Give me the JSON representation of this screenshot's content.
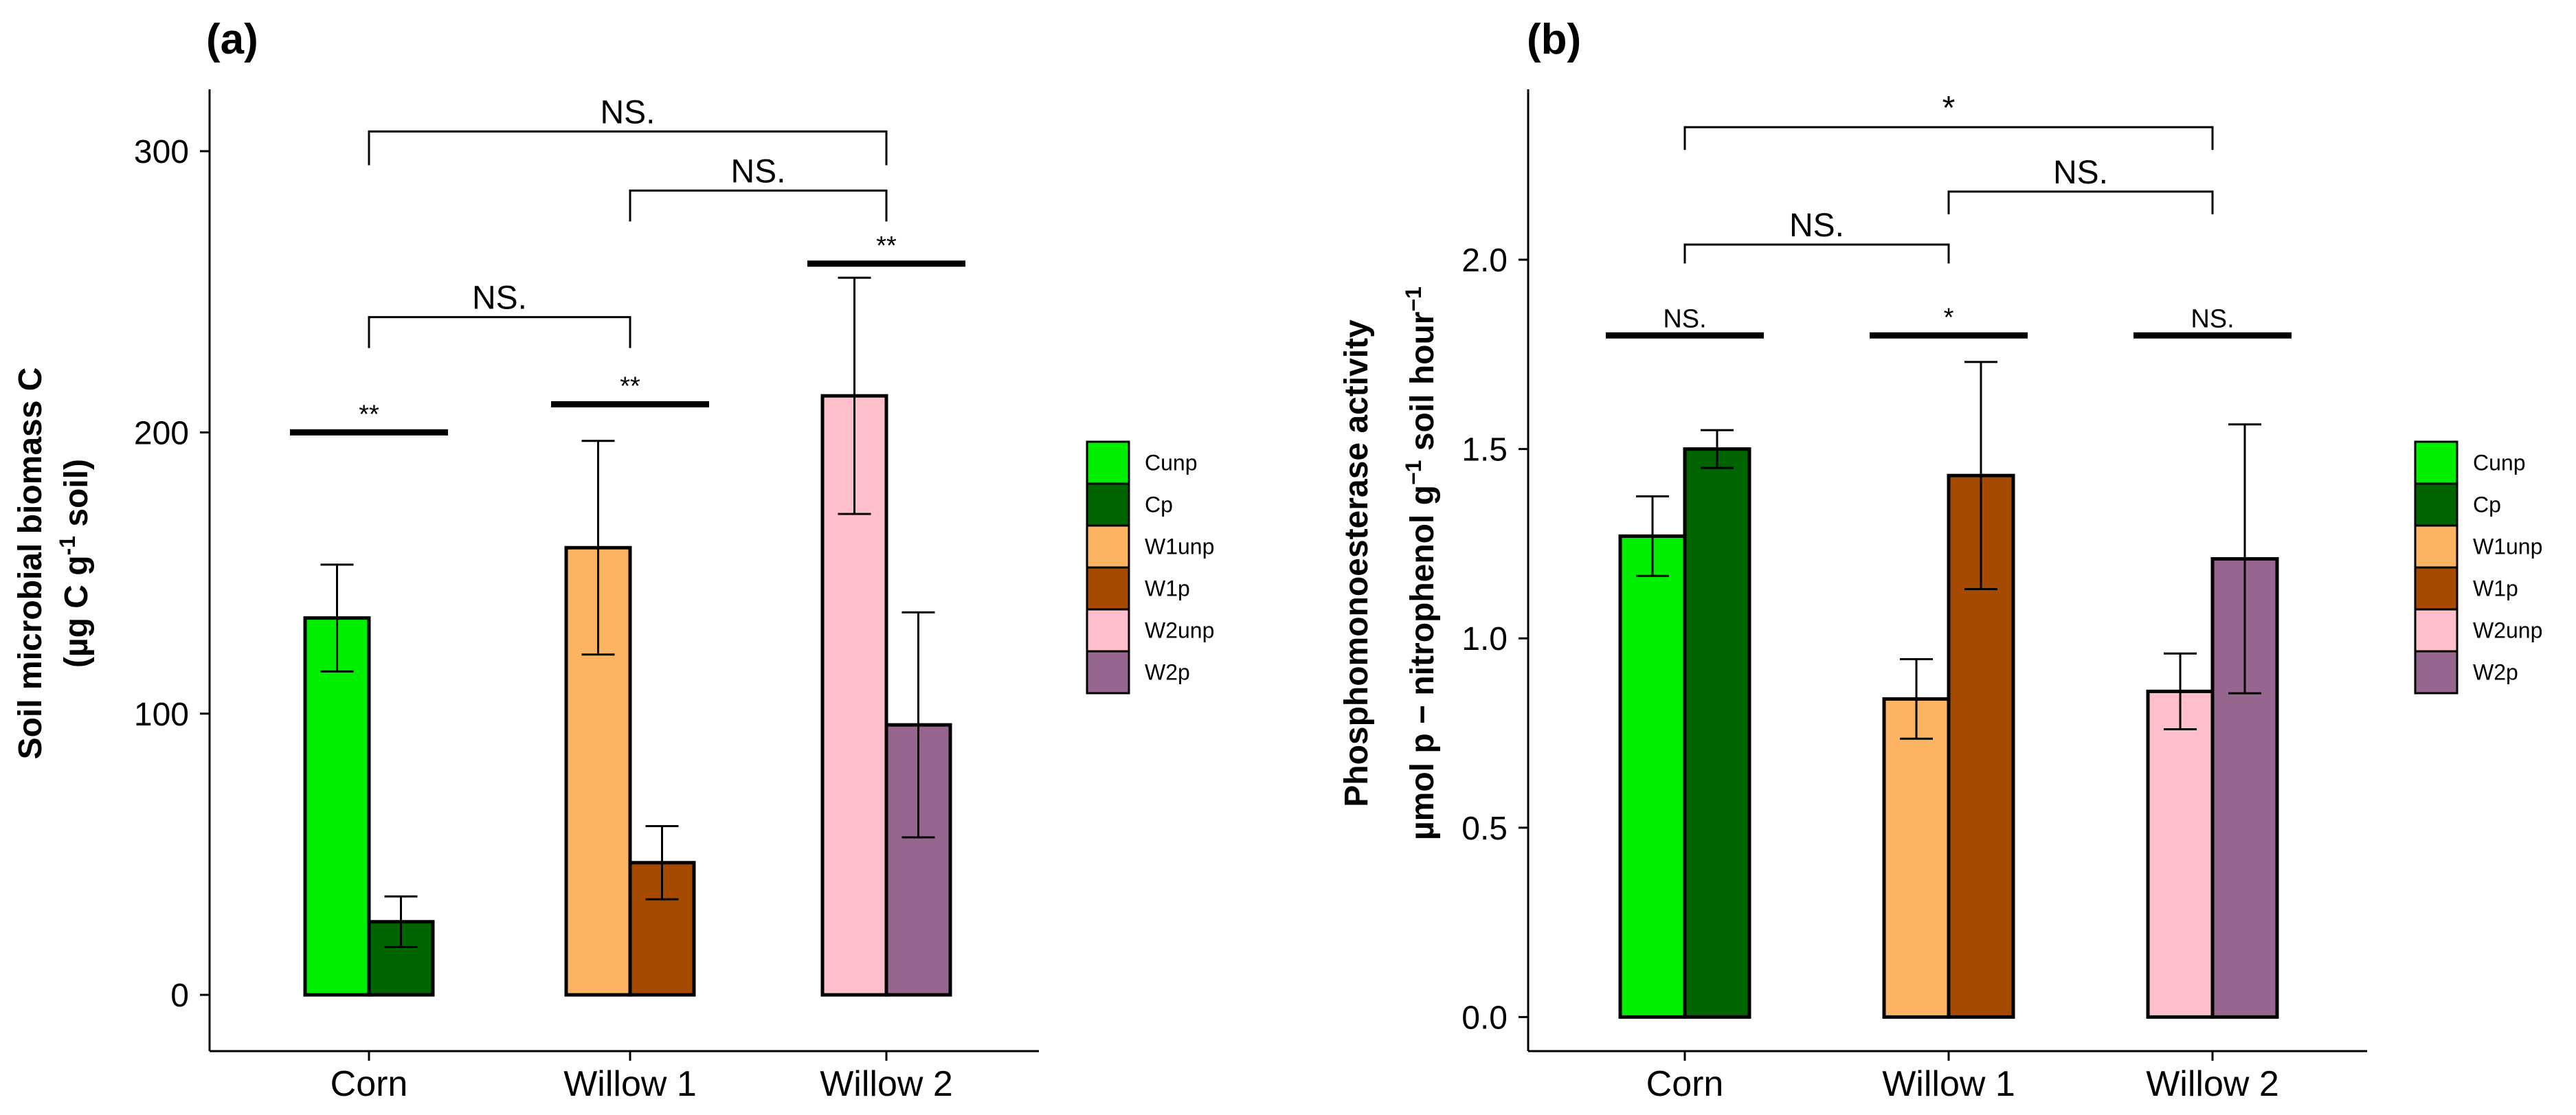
{
  "legend": [
    {
      "key": "Cunp",
      "label": "Cunp",
      "color": "#00EE00"
    },
    {
      "key": "Cp",
      "label": "Cp",
      "color": "#006400"
    },
    {
      "key": "W1unp",
      "label": "W1unp",
      "color": "#FDB462"
    },
    {
      "key": "W1p",
      "label": "W1p",
      "color": "#A64A00"
    },
    {
      "key": "W2unp",
      "label": "W2unp",
      "color": "#FFC0CB"
    },
    {
      "key": "W2p",
      "label": "W2p",
      "color": "#96668E"
    }
  ],
  "chart_data": [
    {
      "type": "bar",
      "panel_label": "(a)",
      "title": "",
      "ylabel_line1": "Soil microbial biomass C",
      "ylabel_line2_prefix": "(µg C  g",
      "ylabel_line2_sup": "-1",
      "ylabel_line2_suffix": " soil)",
      "xlabel": "",
      "ylim": [
        -20,
        322
      ],
      "yticks": [
        0,
        100,
        200,
        300
      ],
      "ytick_labels": [
        "0",
        "100",
        "200",
        "300"
      ],
      "categories": [
        "Corn",
        "Willow 1",
        "Willow 2"
      ],
      "groups": [
        {
          "category": "Corn",
          "bars": [
            {
              "key": "Cunp",
              "value": 134,
              "err": 19
            },
            {
              "key": "Cp",
              "value": 26,
              "err": 9
            }
          ]
        },
        {
          "category": "Willow 1",
          "bars": [
            {
              "key": "W1unp",
              "value": 159,
              "err": 38
            },
            {
              "key": "W1p",
              "value": 47,
              "err": 13
            }
          ]
        },
        {
          "category": "Willow 2",
          "bars": [
            {
              "key": "W2unp",
              "value": 213,
              "err": 42
            },
            {
              "key": "W2p",
              "value": 96,
              "err": 40
            }
          ]
        }
      ],
      "within_group_significance": [
        {
          "category": "Corn",
          "label": "**",
          "y": 200
        },
        {
          "category": "Willow 1",
          "label": "**",
          "y": 210
        },
        {
          "category": "Willow 2",
          "label": "**",
          "y": 260
        }
      ],
      "between_group_comparisons": [
        {
          "from": "Corn",
          "to": "Willow 2",
          "label": "NS.",
          "y": 307,
          "drop_from": 295,
          "drop_to": 295
        },
        {
          "from": "Willow 1",
          "to": "Willow 2",
          "label": "NS.",
          "y": 286,
          "drop_from": 275,
          "drop_to": 275
        },
        {
          "from": "Corn",
          "to": "Willow 1",
          "label": "NS.",
          "y": 241,
          "drop_from": 230,
          "drop_to": 230
        }
      ]
    },
    {
      "type": "bar",
      "panel_label": "(b)",
      "title": "",
      "ylabel_line1": "Phosphomonoesterase  activity",
      "ylabel_line2_prefix": "µmol p − nitrophenol  g",
      "ylabel_line2_sup": "−1",
      "ylabel_line2_mid": "  soil hour",
      "ylabel_line2_sup2": "−1",
      "xlabel": "",
      "ylim": [
        -0.09,
        2.45
      ],
      "yticks": [
        0.0,
        0.5,
        1.0,
        1.5,
        2.0
      ],
      "ytick_labels": [
        "0.0",
        "0.5",
        "1.0",
        "1.5",
        "2.0"
      ],
      "categories": [
        "Corn",
        "Willow 1",
        "Willow 2"
      ],
      "groups": [
        {
          "category": "Corn",
          "bars": [
            {
              "key": "Cunp",
              "value": 1.27,
              "err": 0.105
            },
            {
              "key": "Cp",
              "value": 1.5,
              "err": 0.05
            }
          ]
        },
        {
          "category": "Willow 1",
          "bars": [
            {
              "key": "W1unp",
              "value": 0.84,
              "err": 0.105
            },
            {
              "key": "W1p",
              "value": 1.43,
              "err": 0.3
            }
          ]
        },
        {
          "category": "Willow 2",
          "bars": [
            {
              "key": "W2unp",
              "value": 0.86,
              "err": 0.1
            },
            {
              "key": "W2p",
              "value": 1.21,
              "err": 0.355
            }
          ]
        }
      ],
      "within_group_significance": [
        {
          "category": "Corn",
          "label": "NS.",
          "y": 1.8
        },
        {
          "category": "Willow 1",
          "label": "*",
          "y": 1.8
        },
        {
          "category": "Willow 2",
          "label": "NS.",
          "y": 1.8
        }
      ],
      "between_group_comparisons": [
        {
          "from": "Corn",
          "to": "Willow 2",
          "label": "*",
          "y": 2.35,
          "drop_from": 2.29,
          "drop_to": 2.29
        },
        {
          "from": "Willow 1",
          "to": "Willow 2",
          "label": "NS.",
          "y": 2.18,
          "drop_from": 2.12,
          "drop_to": 2.12
        },
        {
          "from": "Corn",
          "to": "Willow 1",
          "label": "NS.",
          "y": 2.04,
          "drop_from": 1.99,
          "drop_to": 1.99
        }
      ]
    }
  ]
}
